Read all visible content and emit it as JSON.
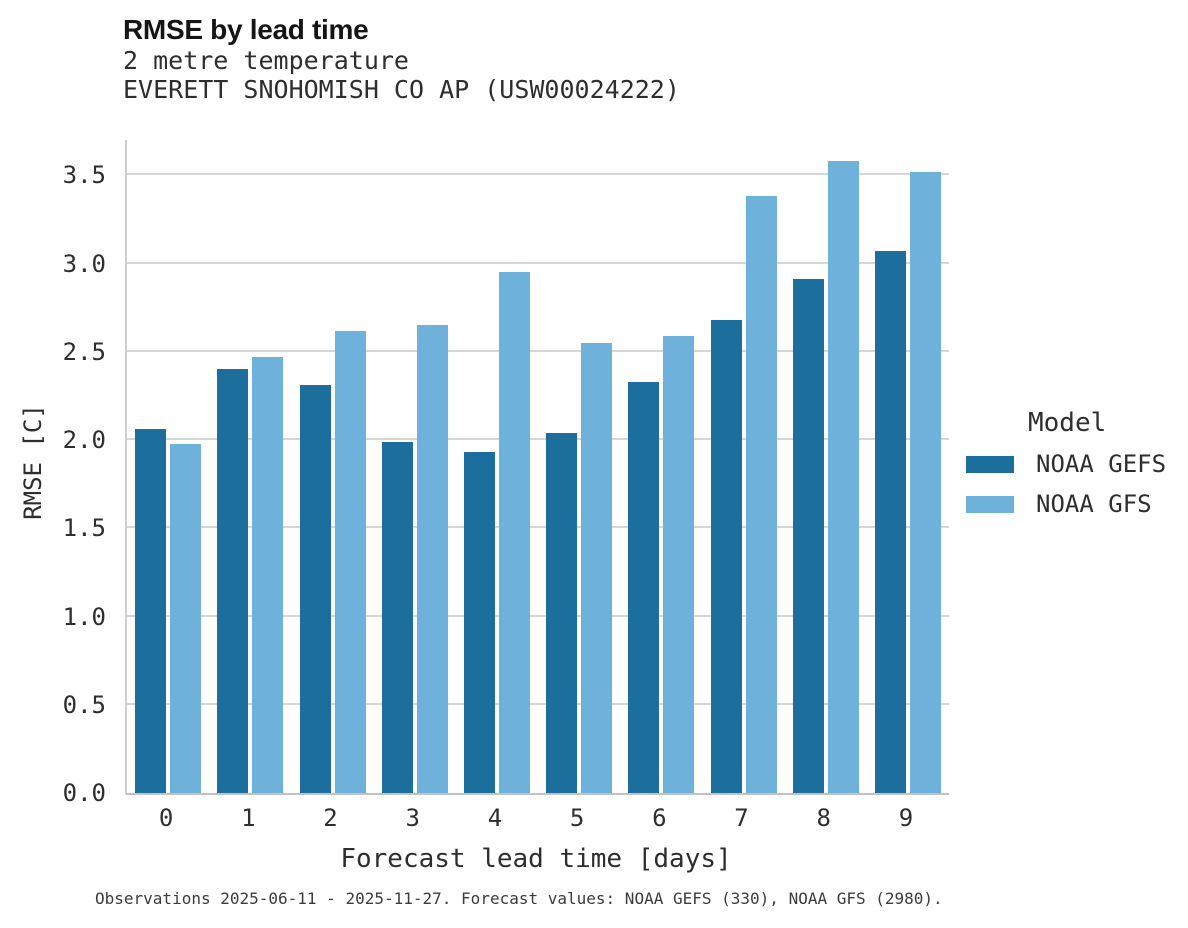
{
  "header": {
    "title": "RMSE by lead time",
    "subtitle_line1": "2 metre temperature",
    "subtitle_line2": "EVERETT SNOHOMISH CO AP (USW00024222)"
  },
  "legend": {
    "title": "Model",
    "items": [
      {
        "label": "NOAA GEFS",
        "color": "#1c6e9d"
      },
      {
        "label": "NOAA GFS",
        "color": "#6eb1da"
      }
    ]
  },
  "footer": {
    "caption": "Observations 2025-06-11 - 2025-11-27. Forecast values: NOAA GEFS (330), NOAA GFS (2980)."
  },
  "chart_data": {
    "type": "bar",
    "title": "RMSE by lead time",
    "subtitle": "2 metre temperature — EVERETT SNOHOMISH CO AP (USW00024222)",
    "xlabel": "Forecast lead time [days]",
    "ylabel": "RMSE [C]",
    "categories": [
      "0",
      "1",
      "2",
      "3",
      "4",
      "5",
      "6",
      "7",
      "8",
      "9"
    ],
    "series": [
      {
        "name": "NOAA GEFS",
        "color": "#1c6e9d",
        "values": [
          2.06,
          2.4,
          2.31,
          1.99,
          1.93,
          2.04,
          2.33,
          2.68,
          2.91,
          3.07
        ]
      },
      {
        "name": "NOAA GFS",
        "color": "#6eb1da",
        "values": [
          1.98,
          2.47,
          2.62,
          2.65,
          2.95,
          2.55,
          2.59,
          3.38,
          3.58,
          3.52
        ]
      }
    ],
    "ylim": [
      0,
      3.7
    ],
    "yticks": [
      "0.0",
      "0.5",
      "1.0",
      "1.5",
      "2.0",
      "2.5",
      "3.0",
      "3.5"
    ],
    "grid": true,
    "legend_position": "center right"
  },
  "style": {
    "grid_color": "#d6d6d6",
    "bar_colors": {
      "noaa_gefs": "#1c6e9d",
      "noaa_gfs": "#6eb1da"
    }
  }
}
